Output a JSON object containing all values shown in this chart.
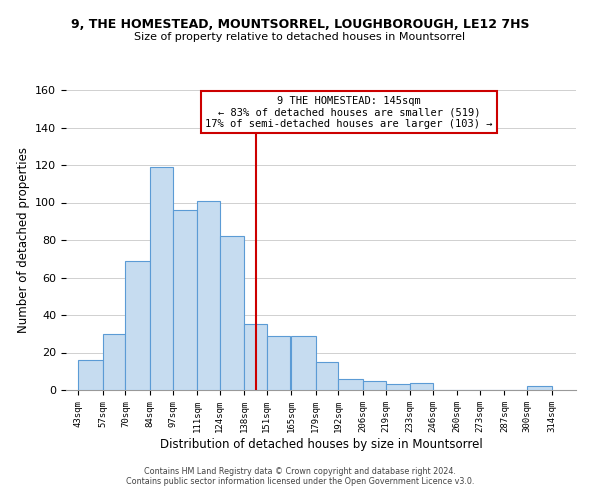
{
  "title1": "9, THE HOMESTEAD, MOUNTSORREL, LOUGHBOROUGH, LE12 7HS",
  "title2": "Size of property relative to detached houses in Mountsorrel",
  "xlabel": "Distribution of detached houses by size in Mountsorrel",
  "ylabel": "Number of detached properties",
  "bar_left_edges": [
    43,
    57,
    70,
    84,
    97,
    111,
    124,
    138,
    151,
    165,
    179,
    192,
    206,
    219,
    233,
    246,
    260,
    273,
    287,
    300
  ],
  "bar_heights": [
    16,
    30,
    69,
    119,
    96,
    101,
    82,
    35,
    29,
    29,
    15,
    6,
    5,
    3,
    4,
    0,
    0,
    0,
    0,
    2
  ],
  "bar_widths": [
    14,
    13,
    14,
    13,
    14,
    13,
    14,
    13,
    13,
    14,
    13,
    14,
    13,
    14,
    13,
    14,
    13,
    14,
    13,
    14
  ],
  "bar_color": "#c6dcf0",
  "bar_edge_color": "#5b9bd5",
  "vline_x": 145,
  "vline_color": "#cc0000",
  "annotation_title": "9 THE HOMESTEAD: 145sqm",
  "annotation_line1": "← 83% of detached houses are smaller (519)",
  "annotation_line2": "17% of semi-detached houses are larger (103) →",
  "annotation_box_color": "#ffffff",
  "annotation_box_edge": "#cc0000",
  "tick_labels": [
    "43sqm",
    "57sqm",
    "70sqm",
    "84sqm",
    "97sqm",
    "111sqm",
    "124sqm",
    "138sqm",
    "151sqm",
    "165sqm",
    "179sqm",
    "192sqm",
    "206sqm",
    "219sqm",
    "233sqm",
    "246sqm",
    "260sqm",
    "273sqm",
    "287sqm",
    "300sqm",
    "314sqm"
  ],
  "tick_positions": [
    43,
    57,
    70,
    84,
    97,
    111,
    124,
    138,
    151,
    165,
    179,
    192,
    206,
    219,
    233,
    246,
    260,
    273,
    287,
    300,
    314
  ],
  "ylim": [
    0,
    160
  ],
  "xlim": [
    36,
    328
  ],
  "yticks": [
    0,
    20,
    40,
    60,
    80,
    100,
    120,
    140,
    160
  ],
  "footer1": "Contains HM Land Registry data © Crown copyright and database right 2024.",
  "footer2": "Contains public sector information licensed under the Open Government Licence v3.0.",
  "background_color": "#ffffff",
  "plot_bg_color": "#ffffff"
}
